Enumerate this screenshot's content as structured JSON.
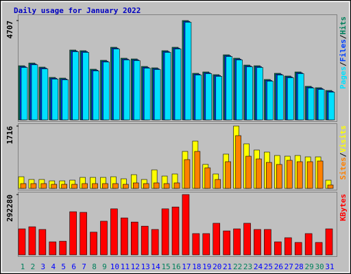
{
  "title": "Daily usage for January 2022",
  "legend_separator": "/",
  "chart_data": [
    {
      "type": "bar",
      "ylim": [
        0,
        4707
      ],
      "yticks": [
        4707
      ],
      "series": [
        {
          "name": "Hits",
          "color": "#00805c",
          "values": [
            2565,
            2694,
            2500,
            2013,
            1980,
            3311,
            3279,
            2402,
            2824,
            3441,
            2922,
            2889,
            2532,
            2467,
            3279,
            3441,
            4707,
            2207,
            2272,
            2143,
            3084,
            2922,
            2597,
            2565,
            1915,
            2207,
            2078,
            2272,
            1591,
            1525,
            1395
          ]
        },
        {
          "name": "Files",
          "color": "#0040ff",
          "values": [
            2525,
            2654,
            2460,
            1973,
            1940,
            3271,
            3239,
            2362,
            2784,
            3401,
            2882,
            2849,
            2492,
            2427,
            3239,
            3401,
            4667,
            2167,
            2232,
            2103,
            3044,
            2882,
            2557,
            2525,
            1875,
            2167,
            2038,
            2232,
            1551,
            1485,
            1355
          ]
        },
        {
          "name": "Pages",
          "color": "#00e0ff",
          "values": [
            2485,
            2614,
            2420,
            1933,
            1900,
            3231,
            3199,
            2322,
            2744,
            3361,
            2842,
            2809,
            2452,
            2387,
            3199,
            3361,
            4627,
            2127,
            2192,
            2063,
            3004,
            2842,
            2517,
            2485,
            1835,
            2127,
            1998,
            2192,
            1511,
            1445,
            1315
          ]
        }
      ]
    },
    {
      "type": "bar",
      "ylim": [
        0,
        1716
      ],
      "yticks": [
        1716
      ],
      "series": [
        {
          "name": "Visits",
          "color": "#ffff00",
          "values": [
            320,
            245,
            245,
            207,
            207,
            226,
            302,
            302,
            302,
            320,
            264,
            377,
            245,
            509,
            339,
            396,
            1018,
            1301,
            660,
            396,
            943,
            1716,
            1226,
            1056,
            999,
            905,
            886,
            905,
            867,
            867,
            226
          ]
        },
        {
          "name": "Sites",
          "color": "#ff8000",
          "values": [
            132,
            132,
            132,
            113,
            113,
            113,
            132,
            132,
            132,
            132,
            113,
            151,
            132,
            151,
            132,
            151,
            792,
            1018,
            566,
            245,
            735,
            1452,
            886,
            811,
            716,
            660,
            773,
            735,
            735,
            754,
            94
          ]
        }
      ]
    },
    {
      "type": "bar",
      "ylim": [
        0,
        292280
      ],
      "yticks": [
        292280
      ],
      "categories": [
        "1",
        "2",
        "3",
        "4",
        "5",
        "6",
        "7",
        "8",
        "9",
        "10",
        "11",
        "12",
        "13",
        "14",
        "15",
        "16",
        "17",
        "18",
        "19",
        "20",
        "21",
        "22",
        "23",
        "24",
        "25",
        "26",
        "27",
        "28",
        "29",
        "30",
        "31"
      ],
      "category_colors": [
        "#00805c",
        "#00805c",
        "#0000ff",
        "#0000ff",
        "#0000ff",
        "#0000ff",
        "#0000ff",
        "#00805c",
        "#00805c",
        "#0000ff",
        "#0000ff",
        "#0000ff",
        "#0000ff",
        "#0000ff",
        "#00805c",
        "#00805c",
        "#0000ff",
        "#0000ff",
        "#0000ff",
        "#0000ff",
        "#0000ff",
        "#00805c",
        "#00805c",
        "#0000ff",
        "#0000ff",
        "#0000ff",
        "#0000ff",
        "#0000ff",
        "#00805c",
        "#00805c",
        "#0000ff"
      ],
      "series": [
        {
          "name": "KBytes",
          "color": "#ff0000",
          "values": [
            126000,
            136000,
            123000,
            63000,
            66000,
            209000,
            206000,
            110000,
            163000,
            223000,
            179000,
            159000,
            139000,
            123000,
            223000,
            232000,
            292280,
            103000,
            103000,
            153000,
            116000,
            126000,
            153000,
            123000,
            123000,
            63000,
            83000,
            60000,
            103000,
            60000,
            126000
          ]
        }
      ]
    }
  ]
}
